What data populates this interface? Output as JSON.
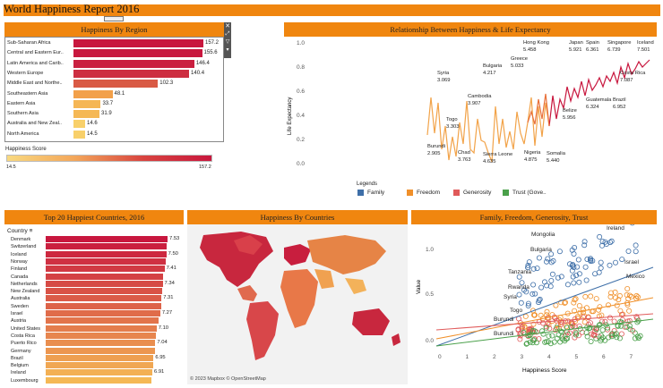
{
  "title": "World Happiness Report 2016",
  "region_panel": {
    "header": "Happiness By Region",
    "rows": [
      {
        "label": "Sub-Saharan Africa",
        "value": "157.2",
        "pct": 1.0,
        "color": "#c8173e"
      },
      {
        "label": "Central and Eastern Eur..",
        "value": "155.6",
        "pct": 0.99,
        "color": "#c8173e"
      },
      {
        "label": "Latin America and Carib..",
        "value": "146.4",
        "pct": 0.93,
        "color": "#ca2040"
      },
      {
        "label": "Western Europe",
        "value": "140.4",
        "pct": 0.89,
        "color": "#cd2e41"
      },
      {
        "label": "Middle East and Northe..",
        "value": "102.3",
        "pct": 0.65,
        "color": "#d95a45"
      },
      {
        "label": "Southeastern Asia",
        "value": "48.1",
        "pct": 0.3,
        "color": "#f2a04a"
      },
      {
        "label": "Eastern Asia",
        "value": "33.7",
        "pct": 0.21,
        "color": "#f5b655"
      },
      {
        "label": "Southern Asia",
        "value": "31.9",
        "pct": 0.2,
        "color": "#f5b855"
      },
      {
        "label": "Australia and New Zeal..",
        "value": "14.6",
        "pct": 0.09,
        "color": "#f8d06a"
      },
      {
        "label": "North America",
        "value": "14.5",
        "pct": 0.09,
        "color": "#f8d06a"
      }
    ],
    "scale_title": "Happiness Score",
    "scale_min": "14.5",
    "scale_max": "157.2",
    "toolbar_icons": [
      "close-icon",
      "expand-icon",
      "filter-icon",
      "menu-icon"
    ]
  },
  "relationship_panel": {
    "header": "Relationship Between Happiness & Life Expectancy",
    "ylabel": "Life Expectancy",
    "yticks": [
      "1.0",
      "0.8",
      "0.6",
      "0.4",
      "0.2",
      "0.0"
    ],
    "annotations": [
      {
        "name": "Syria",
        "value": "3.069"
      },
      {
        "name": "Togo",
        "value": "3.303"
      },
      {
        "name": "Burundi",
        "value": "2.905"
      },
      {
        "name": "Chad",
        "value": "3.763"
      },
      {
        "name": "Cambodia",
        "value": "3.907"
      },
      {
        "name": "Bulgaria",
        "value": "4.217"
      },
      {
        "name": "Sierra Leone",
        "value": "4.635"
      },
      {
        "name": "Greece",
        "value": "5.033"
      },
      {
        "name": "Nigeria",
        "value": "4.875"
      },
      {
        "name": "Somalia",
        "value": "5.440"
      },
      {
        "name": "Hong Kong",
        "value": "5.458"
      },
      {
        "name": "Belize",
        "value": "5.956"
      },
      {
        "name": "Japan",
        "value": "5.921"
      },
      {
        "name": "Spain",
        "value": "6.361"
      },
      {
        "name": "Guatemala",
        "value": "6.324"
      },
      {
        "name": "Singapore",
        "value": "6.739"
      },
      {
        "name": "Iceland",
        "value": "7.501"
      },
      {
        "name": "Costa Rica",
        "value": "7.087"
      },
      {
        "name": "Brazil",
        "value": "6.952"
      }
    ]
  },
  "legend": {
    "title": "Legends",
    "items": [
      {
        "label": "Family",
        "color": "#3e6fa8"
      },
      {
        "label": "Freedom",
        "color": "#f0902a"
      },
      {
        "label": "Generosity",
        "color": "#e05a5a"
      },
      {
        "label": "Trust (Gove..",
        "color": "#4aa04a"
      }
    ]
  },
  "countries_panel": {
    "header": "Top 20 Happiest Countries, 2016",
    "column_label": "Country",
    "rows": [
      {
        "name": "Denmark",
        "value": "7.53",
        "pct": 1.0
      },
      {
        "name": "Switzerland",
        "value": "",
        "pct": 0.995
      },
      {
        "name": "Iceland",
        "value": "7.50",
        "pct": 0.99
      },
      {
        "name": "Norway",
        "value": "",
        "pct": 0.985
      },
      {
        "name": "Finland",
        "value": "7.41",
        "pct": 0.975
      },
      {
        "name": "Canada",
        "value": "",
        "pct": 0.965
      },
      {
        "name": "Netherlands",
        "value": "7.34",
        "pct": 0.96
      },
      {
        "name": "New Zealand",
        "value": "",
        "pct": 0.955
      },
      {
        "name": "Australia",
        "value": "7.31",
        "pct": 0.95
      },
      {
        "name": "Sweden",
        "value": "",
        "pct": 0.945
      },
      {
        "name": "Israel",
        "value": "7.27",
        "pct": 0.94
      },
      {
        "name": "Austria",
        "value": "",
        "pct": 0.93
      },
      {
        "name": "United States",
        "value": "7.10",
        "pct": 0.91
      },
      {
        "name": "Costa Rica",
        "value": "",
        "pct": 0.905
      },
      {
        "name": "Puerto Rico",
        "value": "7.04",
        "pct": 0.9
      },
      {
        "name": "Germany",
        "value": "",
        "pct": 0.895
      },
      {
        "name": "Brazil",
        "value": "6.95",
        "pct": 0.885
      },
      {
        "name": "Belgium",
        "value": "",
        "pct": 0.88
      },
      {
        "name": "Ireland",
        "value": "6.91",
        "pct": 0.875
      },
      {
        "name": "Luxembourg",
        "value": "",
        "pct": 0.87
      }
    ]
  },
  "map_panel": {
    "header": "Happiness By Countries",
    "attribution": "© 2023 Mapbox © OpenStreetMap"
  },
  "scatter_panel": {
    "header": "Family, Freedom, Generosity, Trust",
    "ylabel": "Value",
    "xlabel": "Happiness Score",
    "yticks": [
      "1.0",
      "0.5",
      "0.0"
    ],
    "xticks": [
      "0",
      "1",
      "2",
      "3",
      "4",
      "5",
      "6",
      "7"
    ],
    "labels": [
      "Mongolia",
      "Ireland",
      "Bulgaria",
      "Israel",
      "Tanzania",
      "Mexico",
      "Rwanda",
      "Syria",
      "Togo",
      "Burundi",
      "Burundi"
    ]
  },
  "chart_data": [
    {
      "type": "bar",
      "title": "Happiness By Region",
      "categories": [
        "Sub-Saharan Africa",
        "Central and Eastern Eur..",
        "Latin America and Carib..",
        "Western Europe",
        "Middle East and Northe..",
        "Southeastern Asia",
        "Eastern Asia",
        "Southern Asia",
        "Australia and New Zeal..",
        "North America"
      ],
      "values": [
        157.2,
        155.6,
        146.4,
        140.4,
        102.3,
        48.1,
        33.7,
        31.9,
        14.6,
        14.5
      ]
    },
    {
      "type": "bar",
      "title": "Top 20 Happiest Countries, 2016",
      "categories": [
        "Denmark",
        "Switzerland",
        "Iceland",
        "Norway",
        "Finland",
        "Canada",
        "Netherlands",
        "New Zealand",
        "Australia",
        "Sweden",
        "Israel",
        "Austria",
        "United States",
        "Costa Rica",
        "Puerto Rico",
        "Germany",
        "Brazil",
        "Belgium",
        "Ireland",
        "Luxembourg"
      ],
      "values": [
        7.53,
        7.51,
        7.5,
        7.5,
        7.41,
        7.4,
        7.34,
        7.33,
        7.31,
        7.29,
        7.27,
        7.12,
        7.1,
        7.09,
        7.04,
        6.99,
        6.95,
        6.93,
        6.91,
        6.87
      ]
    },
    {
      "type": "line",
      "title": "Relationship Between Happiness & Life Expectancy",
      "ylabel": "Life Expectancy",
      "ylim": [
        0,
        1.0
      ]
    },
    {
      "type": "scatter",
      "title": "Family, Freedom, Generosity, Trust",
      "xlabel": "Happiness Score",
      "ylabel": "Value",
      "xlim": [
        0,
        7.5
      ],
      "ylim": [
        -0.1,
        1.3
      ],
      "series": [
        {
          "name": "Family",
          "color": "#3e6fa8"
        },
        {
          "name": "Freedom",
          "color": "#f0902a"
        },
        {
          "name": "Generosity",
          "color": "#e05a5a"
        },
        {
          "name": "Trust (Gove..",
          "color": "#4aa04a"
        }
      ]
    }
  ]
}
